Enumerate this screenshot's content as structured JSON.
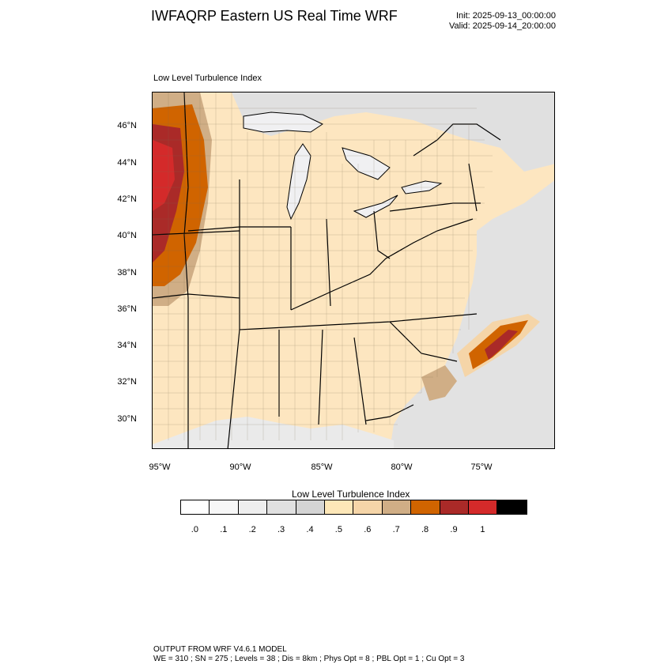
{
  "header": {
    "title": "IWFAQRP Eastern US Real Time WRF",
    "init": "Init: 2025-09-13_00:00:00",
    "valid": "Valid: 2025-09-14_20:00:00"
  },
  "map": {
    "subtitle": "Low Level Turbulence Index",
    "lat_labels": [
      "46°N",
      "44°N",
      "42°N",
      "40°N",
      "38°N",
      "36°N",
      "34°N",
      "32°N",
      "30°N"
    ],
    "lon_labels": [
      "95°W",
      "90°W",
      "85°W",
      "80°W",
      "75°W"
    ],
    "colors": {
      "land_base": "#fde6c0",
      "ocean_low": "#e6e6e6",
      "lake": "#f0f0f2"
    }
  },
  "colorbar": {
    "title": "Low Level Turbulence Index",
    "colors": [
      "#ffffff",
      "#f7f7f7",
      "#eeeeee",
      "#e0e0e0",
      "#d4d4d4",
      "#fde7b8",
      "#f5d5a8",
      "#d0ae86",
      "#d06400",
      "#aa2a28",
      "#d42a2a",
      "#000000"
    ],
    "tick_labels": [
      ".0",
      ".1",
      ".2",
      ".3",
      ".4",
      ".5",
      ".6",
      ".7",
      ".8",
      ".9",
      "1"
    ]
  },
  "footer": {
    "line1": "OUTPUT FROM WRF V4.6.1 MODEL",
    "line2": "WE = 310 ; SN = 275 ; Levels = 38 ; Dis = 8km ; Phys Opt = 8 ; PBL Opt = 1 ; Cu Opt = 3"
  }
}
